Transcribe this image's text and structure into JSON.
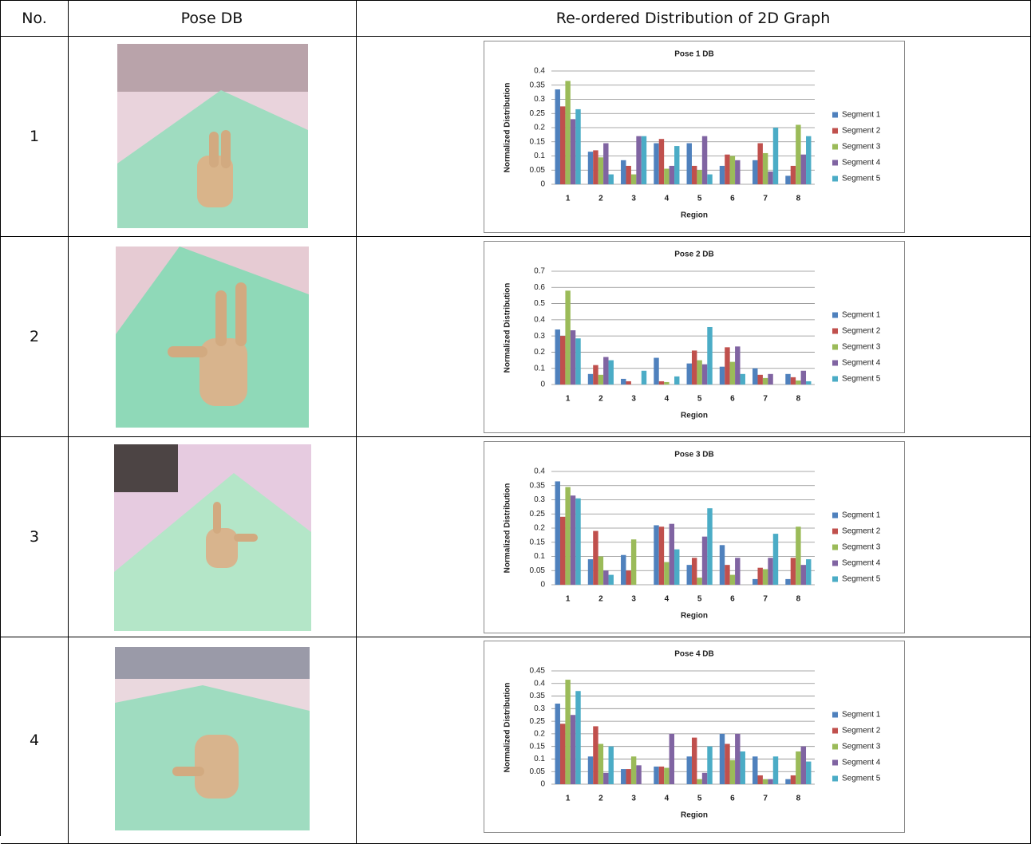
{
  "table": {
    "header": [
      "No.",
      "Pose DB",
      "Re-ordered Distribution of 2D Graph"
    ],
    "rows": [
      "1",
      "2",
      "3",
      "4"
    ]
  },
  "chart_data": [
    {
      "type": "bar",
      "title": "Pose 1 DB",
      "x_label": "Region",
      "y_label": "Normalized Distribution",
      "categories": [
        "1",
        "2",
        "3",
        "4",
        "5",
        "6",
        "7",
        "8"
      ],
      "ylim": [
        0,
        0.4
      ],
      "yticks": [
        0,
        0.05,
        0.1,
        0.15,
        0.2,
        0.25,
        0.3,
        0.35,
        0.4
      ],
      "grid": true,
      "legend": "right",
      "series": [
        {
          "name": "Segment 1",
          "color": "#4F81BD",
          "values": [
            0.335,
            0.115,
            0.085,
            0.145,
            0.145,
            0.065,
            0.085,
            0.03
          ]
        },
        {
          "name": "Segment 2",
          "color": "#C0504D",
          "values": [
            0.275,
            0.12,
            0.065,
            0.16,
            0.065,
            0.105,
            0.145,
            0.065
          ]
        },
        {
          "name": "Segment 3",
          "color": "#9BBB59",
          "values": [
            0.365,
            0.095,
            0.035,
            0.055,
            0.05,
            0.1,
            0.11,
            0.21
          ]
        },
        {
          "name": "Segment 4",
          "color": "#8064A2",
          "values": [
            0.23,
            0.145,
            0.17,
            0.065,
            0.17,
            0.085,
            0.045,
            0.105
          ]
        },
        {
          "name": "Segment 5",
          "color": "#4BACC6",
          "values": [
            0.265,
            0.035,
            0.17,
            0.135,
            0.035,
            0,
            0.2,
            0.17
          ]
        }
      ]
    },
    {
      "type": "bar",
      "title": "Pose 2 DB",
      "x_label": "Region",
      "y_label": "Normalized Distribution",
      "categories": [
        "1",
        "2",
        "3",
        "4",
        "5",
        "6",
        "7",
        "8"
      ],
      "ylim": [
        0,
        0.7
      ],
      "yticks": [
        0,
        0.1,
        0.2,
        0.3,
        0.4,
        0.5,
        0.6,
        0.7
      ],
      "grid": true,
      "legend": "right",
      "series": [
        {
          "name": "Segment 1",
          "color": "#4F81BD",
          "values": [
            0.34,
            0.065,
            0.035,
            0.165,
            0.13,
            0.11,
            0.1,
            0.065
          ]
        },
        {
          "name": "Segment 2",
          "color": "#C0504D",
          "values": [
            0.3,
            0.12,
            0.02,
            0.02,
            0.21,
            0.23,
            0.06,
            0.045
          ]
        },
        {
          "name": "Segment 3",
          "color": "#9BBB59",
          "values": [
            0.58,
            0.06,
            0,
            0.015,
            0.15,
            0.14,
            0.04,
            0.025
          ]
        },
        {
          "name": "Segment 4",
          "color": "#8064A2",
          "values": [
            0.335,
            0.17,
            0,
            0,
            0.125,
            0.235,
            0.065,
            0.085
          ]
        },
        {
          "name": "Segment 5",
          "color": "#4BACC6",
          "values": [
            0.285,
            0.15,
            0.085,
            0.05,
            0.355,
            0.065,
            0,
            0.02
          ]
        }
      ]
    },
    {
      "type": "bar",
      "title": "Pose 3 DB",
      "x_label": "Region",
      "y_label": "Normalized Distribution",
      "categories": [
        "1",
        "2",
        "3",
        "4",
        "5",
        "6",
        "7",
        "8"
      ],
      "ylim": [
        0,
        0.4
      ],
      "yticks": [
        0,
        0.05,
        0.1,
        0.15,
        0.2,
        0.25,
        0.3,
        0.35,
        0.4
      ],
      "grid": true,
      "legend": "right",
      "series": [
        {
          "name": "Segment 1",
          "color": "#4F81BD",
          "values": [
            0.365,
            0.09,
            0.105,
            0.21,
            0.07,
            0.14,
            0.02,
            0.02
          ]
        },
        {
          "name": "Segment 2",
          "color": "#C0504D",
          "values": [
            0.24,
            0.19,
            0.05,
            0.205,
            0.095,
            0.07,
            0.06,
            0.095
          ]
        },
        {
          "name": "Segment 3",
          "color": "#9BBB59",
          "values": [
            0.345,
            0.1,
            0.16,
            0.08,
            0.025,
            0.035,
            0.055,
            0.205
          ]
        },
        {
          "name": "Segment 4",
          "color": "#8064A2",
          "values": [
            0.315,
            0.05,
            0,
            0.215,
            0.17,
            0.095,
            0.095,
            0.07
          ]
        },
        {
          "name": "Segment 5",
          "color": "#4BACC6",
          "values": [
            0.305,
            0.035,
            0,
            0.125,
            0.27,
            0,
            0.18,
            0.09
          ]
        }
      ]
    },
    {
      "type": "bar",
      "title": "Pose 4 DB",
      "x_label": "Region",
      "y_label": "Normalized Distribution",
      "categories": [
        "1",
        "2",
        "3",
        "4",
        "5",
        "6",
        "7",
        "8"
      ],
      "ylim": [
        0,
        0.45
      ],
      "yticks": [
        0,
        0.05,
        0.1,
        0.15,
        0.2,
        0.25,
        0.3,
        0.35,
        0.4,
        0.45
      ],
      "grid": true,
      "legend": "right",
      "series": [
        {
          "name": "Segment 1",
          "color": "#4F81BD",
          "values": [
            0.32,
            0.11,
            0.06,
            0.07,
            0.11,
            0.2,
            0.11,
            0.02
          ]
        },
        {
          "name": "Segment 2",
          "color": "#C0504D",
          "values": [
            0.24,
            0.23,
            0.06,
            0.07,
            0.185,
            0.16,
            0.035,
            0.035
          ]
        },
        {
          "name": "Segment 3",
          "color": "#9BBB59",
          "values": [
            0.415,
            0.16,
            0.11,
            0.065,
            0.02,
            0.095,
            0.02,
            0.13
          ]
        },
        {
          "name": "Segment 4",
          "color": "#8064A2",
          "values": [
            0.275,
            0.045,
            0.075,
            0.2,
            0.045,
            0.2,
            0.02,
            0.15
          ]
        },
        {
          "name": "Segment 5",
          "color": "#4BACC6",
          "values": [
            0.37,
            0.15,
            0,
            0,
            0.15,
            0.13,
            0.11,
            0.09
          ]
        }
      ]
    }
  ]
}
